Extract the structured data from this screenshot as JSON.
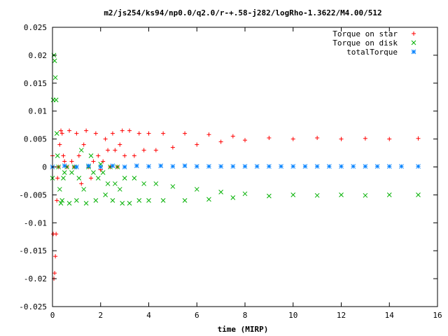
{
  "chart_data": {
    "type": "scatter",
    "title": "m2/js254/ks94/np0.0/q2.0/r-+.58-j282/logRho-1.3622/M4.00/512",
    "xlabel": "time (MIRP)",
    "ylabel": "",
    "xlim": [
      0,
      16
    ],
    "ylim": [
      -0.025,
      0.025
    ],
    "x_ticks": [
      0,
      2,
      4,
      6,
      8,
      10,
      12,
      14,
      16
    ],
    "y_ticks": [
      -0.025,
      -0.02,
      -0.015,
      -0.01,
      -0.005,
      0,
      0.005,
      0.01,
      0.015,
      0.02,
      0.025
    ],
    "x_tick_labels": [
      "0",
      "2",
      "4",
      "6",
      "8",
      "10",
      "12",
      "14",
      "16"
    ],
    "y_tick_labels": [
      "-0.025",
      "-0.02",
      "-0.015",
      "-0.01",
      "-0.005",
      "0",
      "0.005",
      "0.01",
      "0.015",
      "0.02",
      "0.025"
    ],
    "grid": false,
    "legend_position": "top-right",
    "series": [
      {
        "name": "Torque on star",
        "marker": "+",
        "color": "#ff0000",
        "x": [
          0.0,
          0.03,
          0.06,
          0.09,
          0.12,
          0.15,
          0.18,
          0.21,
          0.25,
          0.3,
          0.35,
          0.4,
          0.45,
          0.5,
          0.6,
          0.7,
          0.8,
          0.9,
          1.0,
          1.1,
          1.2,
          1.3,
          1.4,
          1.5,
          1.6,
          1.7,
          1.8,
          1.9,
          2.0,
          2.1,
          2.2,
          2.3,
          2.4,
          2.5,
          2.6,
          2.7,
          2.8,
          2.9,
          3.0,
          3.2,
          3.4,
          3.6,
          3.8,
          4.0,
          4.3,
          4.6,
          5.0,
          5.5,
          6.0,
          6.5,
          7.0,
          7.5,
          8.0,
          9.0,
          10.0,
          11.0,
          12.0,
          13.0,
          14.0,
          15.2
        ],
        "y": [
          0.002,
          -0.012,
          -0.02,
          -0.019,
          -0.016,
          -0.012,
          -0.006,
          -0.002,
          0.0,
          0.004,
          0.0065,
          0.006,
          0.002,
          0.001,
          0.0,
          0.0065,
          0.001,
          0.0,
          0.006,
          0.002,
          -0.003,
          0.004,
          0.0065,
          0.0,
          -0.002,
          0.001,
          0.006,
          0.002,
          -0.0005,
          0.001,
          0.005,
          0.003,
          0.0,
          0.006,
          0.003,
          0.0,
          0.004,
          0.0065,
          0.002,
          0.0065,
          0.002,
          0.006,
          0.003,
          0.006,
          0.003,
          0.006,
          0.0035,
          0.006,
          0.004,
          0.0058,
          0.0045,
          0.0055,
          0.0048,
          0.0052,
          0.005,
          0.0052,
          0.005,
          0.0051,
          0.005,
          0.0051
        ]
      },
      {
        "name": "Torque on disk",
        "marker": "x",
        "color": "#00b000",
        "x": [
          0.0,
          0.03,
          0.06,
          0.09,
          0.12,
          0.15,
          0.18,
          0.21,
          0.25,
          0.3,
          0.35,
          0.4,
          0.45,
          0.5,
          0.6,
          0.7,
          0.8,
          0.9,
          1.0,
          1.1,
          1.2,
          1.3,
          1.4,
          1.5,
          1.6,
          1.7,
          1.8,
          1.9,
          2.0,
          2.1,
          2.2,
          2.3,
          2.4,
          2.5,
          2.6,
          2.7,
          2.8,
          2.9,
          3.0,
          3.2,
          3.4,
          3.6,
          3.8,
          4.0,
          4.3,
          4.6,
          5.0,
          5.5,
          6.0,
          6.5,
          7.0,
          7.5,
          8.0,
          9.0,
          10.0,
          11.0,
          12.0,
          13.0,
          14.0,
          15.2
        ],
        "y": [
          -0.002,
          0.012,
          0.02,
          0.019,
          0.016,
          0.012,
          0.006,
          0.002,
          0.0,
          -0.004,
          -0.0065,
          -0.006,
          -0.002,
          -0.001,
          0.0,
          -0.0065,
          -0.001,
          0.0,
          -0.006,
          -0.002,
          0.003,
          -0.004,
          -0.0065,
          0.0,
          0.002,
          -0.001,
          -0.006,
          -0.002,
          0.0005,
          -0.001,
          -0.005,
          -0.003,
          0.0,
          -0.006,
          -0.003,
          0.0,
          -0.004,
          -0.0065,
          -0.002,
          -0.0065,
          -0.002,
          -0.006,
          -0.003,
          -0.006,
          -0.003,
          -0.006,
          -0.0035,
          -0.006,
          -0.004,
          -0.0058,
          -0.0045,
          -0.0055,
          -0.0048,
          -0.0052,
          -0.005,
          -0.0051,
          -0.005,
          -0.0051,
          -0.005,
          -0.005
        ]
      },
      {
        "name": "totalTorque",
        "marker": "*",
        "color": "#0080ff",
        "x": [
          0.0,
          0.5,
          1.0,
          1.5,
          2.0,
          2.5,
          3.0,
          3.5,
          4.0,
          4.5,
          5.0,
          5.5,
          6.0,
          6.5,
          7.0,
          7.5,
          8.0,
          8.5,
          9.0,
          9.5,
          10.0,
          10.5,
          11.0,
          11.5,
          12.0,
          12.5,
          13.0,
          13.5,
          14.0,
          14.5,
          15.2
        ],
        "y": [
          0.0,
          0.0002,
          0.0,
          0.0002,
          0.0,
          0.0002,
          0.0,
          0.0002,
          0.0001,
          0.0002,
          0.0001,
          0.0002,
          0.0001,
          0.0001,
          0.0001,
          0.0001,
          0.0001,
          0.0001,
          0.0001,
          0.0001,
          0.0001,
          0.0001,
          0.0001,
          0.0001,
          0.0001,
          0.0001,
          0.0001,
          0.0001,
          0.0001,
          0.0001,
          0.0001
        ]
      }
    ]
  }
}
